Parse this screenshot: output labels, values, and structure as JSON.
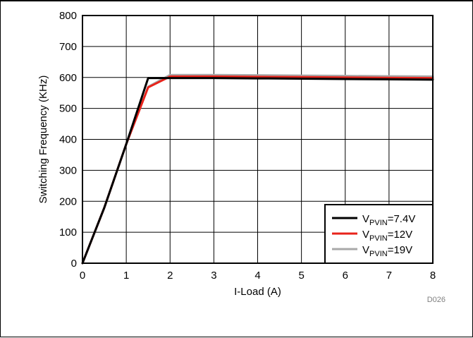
{
  "chart_data": {
    "type": "line",
    "title": "",
    "xlabel": "I-Load (A)",
    "ylabel": "Switching Frequency (KHz)",
    "xlim": [
      0,
      8
    ],
    "ylim": [
      0,
      800
    ],
    "xticks": [
      "0",
      "1",
      "2",
      "3",
      "4",
      "5",
      "6",
      "7",
      "8"
    ],
    "yticks": [
      "0",
      "100",
      "200",
      "300",
      "400",
      "500",
      "600",
      "700",
      "800"
    ],
    "grid": true,
    "legend_position": "bottom-right",
    "figure_id": "D026",
    "series": [
      {
        "name": "VPVIN=7.4V",
        "legend_main": "V",
        "legend_sub": "PVIN",
        "legend_value": "=7.4V",
        "color": "#000000",
        "x": [
          0,
          0.5,
          1,
          1.5,
          2,
          3,
          4,
          5,
          6,
          7,
          8
        ],
        "y": [
          0,
          180,
          385,
          598,
          598,
          598,
          597,
          596,
          595,
          594,
          593
        ]
      },
      {
        "name": "VPVIN=12V",
        "legend_main": "V",
        "legend_sub": "PVIN",
        "legend_value": "=12V",
        "color": "#e8231b",
        "x": [
          0,
          0.5,
          1,
          1.5,
          2,
          3,
          4,
          5,
          6,
          7,
          8
        ],
        "y": [
          0,
          180,
          385,
          568,
          603,
          603,
          602,
          601,
          600,
          599,
          598
        ]
      },
      {
        "name": "VPVIN=19V",
        "legend_main": "V",
        "legend_sub": "PVIN",
        "legend_value": "=19V",
        "color": "#a8a8a8",
        "x": [
          0,
          0.5,
          1,
          1.5,
          2,
          3,
          4,
          5,
          6,
          7,
          8
        ],
        "y": [
          0,
          180,
          385,
          570,
          608,
          608,
          607,
          606,
          605,
          604,
          603
        ]
      }
    ]
  }
}
